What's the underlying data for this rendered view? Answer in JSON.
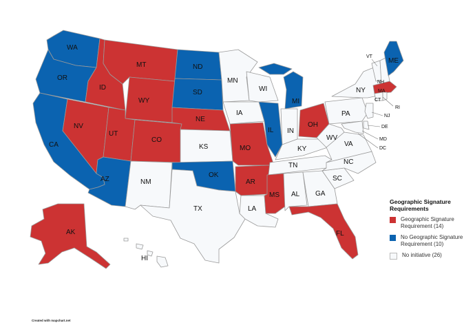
{
  "legend": {
    "title": "Geographic Signature Requirements",
    "items": [
      {
        "label": "Geographic Signature Requirement (14)",
        "color": "#cc3333"
      },
      {
        "label": "No Geographic Signature Requirement (10)",
        "color": "#0b63b0"
      },
      {
        "label": "No initiative (26)",
        "color": "#f7f9fb"
      }
    ]
  },
  "credit": "Created with mapchart.net",
  "colors": {
    "red": "#cc3333",
    "blue": "#0b63b0",
    "white": "#f7f9fb"
  },
  "states": {
    "WA": "WA",
    "OR": "OR",
    "CA": "CA",
    "NV": "NV",
    "ID": "ID",
    "MT": "MT",
    "WY": "WY",
    "UT": "UT",
    "AZ": "AZ",
    "CO": "CO",
    "NM": "NM",
    "ND": "ND",
    "SD": "SD",
    "NE": "NE",
    "KS": "KS",
    "OK": "OK",
    "TX": "TX",
    "MN": "MN",
    "IA": "IA",
    "MO": "MO",
    "AR": "AR",
    "LA": "LA",
    "WI": "WI",
    "IL": "IL",
    "MI": "MI",
    "IN": "IN",
    "OH": "OH",
    "KY": "KY",
    "TN": "TN",
    "MS": "MS",
    "AL": "AL",
    "GA": "GA",
    "FL": "FL",
    "SC": "SC",
    "NC": "NC",
    "VA": "VA",
    "WV": "WV",
    "PA": "PA",
    "NY": "NY",
    "VT": "VT",
    "NH": "NH",
    "ME": "ME",
    "MA": "MA",
    "RI": "RI",
    "CT": "CT",
    "NJ": "NJ",
    "DE": "DE",
    "MD": "MD",
    "DC": "DC",
    "AK": "AK",
    "HI": "HI"
  }
}
